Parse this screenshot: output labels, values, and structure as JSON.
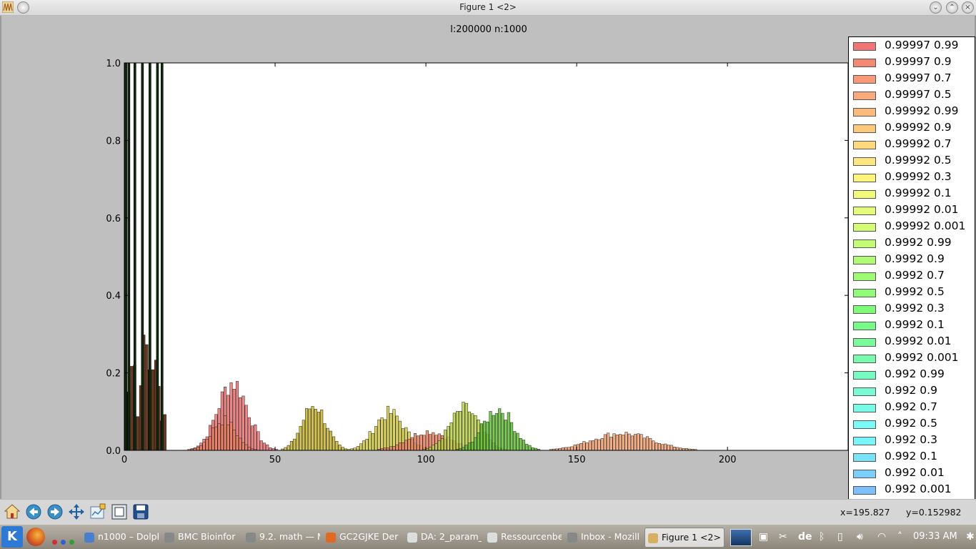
{
  "window": {
    "title": "Figure 1 <2>",
    "buttons": [
      "minimize",
      "maximize",
      "close"
    ]
  },
  "chart_data": {
    "type": "bar",
    "title": "l:200000 n:1000",
    "xlabel": "",
    "ylabel": "",
    "xlim": [
      0,
      240
    ],
    "ylim": [
      0,
      1.0
    ],
    "xticks": [
      "0",
      "50",
      "100",
      "150",
      "200"
    ],
    "yticks": [
      "0.0",
      "0.2",
      "0.4",
      "0.6",
      "0.8",
      "1.0"
    ],
    "legend_position": "right",
    "dark_spikes": [
      {
        "x": 0.5,
        "value": 1.0
      },
      {
        "x": 1.5,
        "value": 1.0
      },
      {
        "x": 3.5,
        "value": 1.0
      },
      {
        "x": 6,
        "value": 1.0
      },
      {
        "x": 8.5,
        "value": 1.0
      },
      {
        "x": 11,
        "value": 1.0
      },
      {
        "x": 12.5,
        "value": 1.0
      }
    ],
    "peaks": [
      {
        "series": "0.99997 0.99",
        "center": 36,
        "width": 5,
        "height": 0.18,
        "color": "#f07070"
      },
      {
        "series": "0.99992 0.99",
        "center": 33,
        "width": 4,
        "height": 0.08,
        "color": "#f08060"
      },
      {
        "series": "0.99992 0.9",
        "center": 63,
        "width": 4,
        "height": 0.12,
        "color": "#c8b428"
      },
      {
        "series": "0.99992 0.5",
        "center": 88,
        "width": 5,
        "height": 0.1,
        "color": "#d4cc40"
      },
      {
        "series": "0.99997 0.7",
        "center": 101,
        "width": 7,
        "height": 0.05,
        "color": "#f08060"
      },
      {
        "series": "0.9992 0.99",
        "center": 113,
        "width": 5,
        "height": 0.11,
        "color": "#b8d040"
      },
      {
        "series": "0.9992 0.3",
        "center": 124,
        "width": 5,
        "height": 0.11,
        "color": "#60c030"
      },
      {
        "series": "0.99997 0.5",
        "center": 165,
        "width": 10,
        "height": 0.045,
        "color": "#f5a070"
      }
    ],
    "legend": [
      {
        "label": "0.99997 0.99",
        "color": "#f07575"
      },
      {
        "label": "0.99997 0.9",
        "color": "#f58873"
      },
      {
        "label": "0.99997 0.7",
        "color": "#f89a78"
      },
      {
        "label": "0.99997 0.5",
        "color": "#faa97a"
      },
      {
        "label": "0.99992 0.99",
        "color": "#fbbb7a"
      },
      {
        "label": "0.99992 0.9",
        "color": "#fcc97a"
      },
      {
        "label": "0.99992 0.7",
        "color": "#fdd87c"
      },
      {
        "label": "0.99992 0.5",
        "color": "#fde680"
      },
      {
        "label": "0.99992 0.3",
        "color": "#fdf47c"
      },
      {
        "label": "0.99992 0.1",
        "color": "#f1fb7a"
      },
      {
        "label": "0.99992 0.01",
        "color": "#e3fb78"
      },
      {
        "label": "0.99992 0.001",
        "color": "#d3fb74"
      },
      {
        "label": "0.9992 0.99",
        "color": "#c3fb74"
      },
      {
        "label": "0.9992 0.9",
        "color": "#b1fb74"
      },
      {
        "label": "0.9992 0.7",
        "color": "#a0fb74"
      },
      {
        "label": "0.9992 0.5",
        "color": "#8ffb76"
      },
      {
        "label": "0.9992 0.3",
        "color": "#7ffb78"
      },
      {
        "label": "0.9992 0.1",
        "color": "#78fb86"
      },
      {
        "label": "0.9992 0.01",
        "color": "#78fb98"
      },
      {
        "label": "0.9992 0.001",
        "color": "#78fbac"
      },
      {
        "label": "0.992 0.99",
        "color": "#78fbc0"
      },
      {
        "label": "0.992 0.9",
        "color": "#78fbd4"
      },
      {
        "label": "0.992 0.7",
        "color": "#78fbe6"
      },
      {
        "label": "0.992 0.5",
        "color": "#78fbf6"
      },
      {
        "label": "0.992 0.3",
        "color": "#78f4fb"
      },
      {
        "label": "0.992 0.1",
        "color": "#78e2fb"
      },
      {
        "label": "0.992 0.01",
        "color": "#7ad0fb"
      },
      {
        "label": "0.992 0.001",
        "color": "#7cc0fb"
      }
    ]
  },
  "toolbar": {
    "tools": [
      "home-icon",
      "back-icon",
      "forward-icon",
      "pan-icon",
      "configure-subplots-icon",
      "edit-axis-icon",
      "save-icon"
    ],
    "x_readout": "x=195.827",
    "y_readout": "y=0.152982"
  },
  "taskbar": {
    "tasks": [
      {
        "label": "n1000 – Dolph",
        "icon": "folder-icon",
        "color": "#4a7fd0"
      },
      {
        "label": "BMC Bioinfor",
        "icon": "browser-icon",
        "color": "#888888"
      },
      {
        "label": "9.2. math — M",
        "icon": "browser-icon",
        "color": "#888888"
      },
      {
        "label": "GC2GJKE Der",
        "icon": "firefox-icon",
        "color": "#e06a20"
      },
      {
        "label": "DA: 2_param_",
        "icon": "editor-icon",
        "color": "#dddddd"
      },
      {
        "label": "Ressourcenbe",
        "icon": "monitor-icon",
        "color": "#dddddd"
      },
      {
        "label": "Inbox - Mozill",
        "icon": "mail-icon",
        "color": "#888888"
      },
      {
        "label": "Figure 1 <2>",
        "icon": "figure-icon",
        "color": "#d4b060"
      }
    ],
    "keyboard_layout": "de",
    "clock": "09:33 AM"
  }
}
